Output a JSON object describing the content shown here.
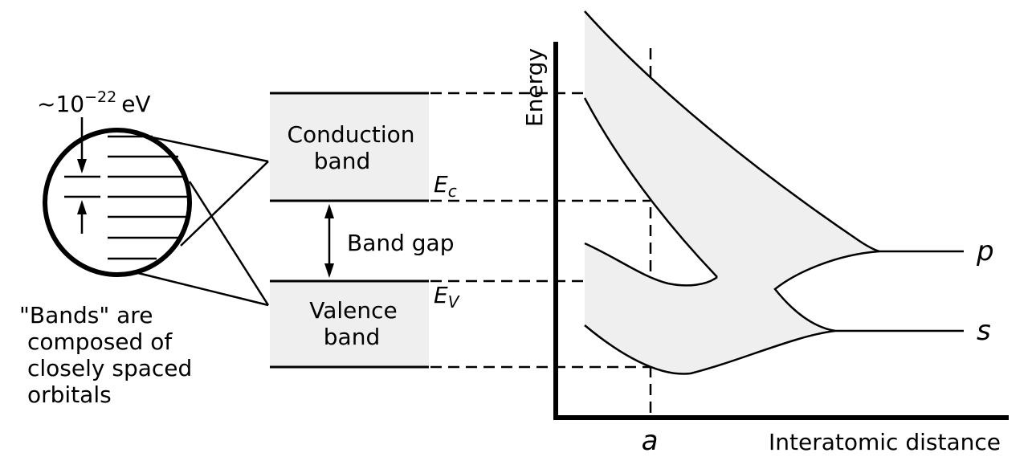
{
  "spacing_label": "~10",
  "spacing_exponent": "−22",
  "spacing_unit": "eV",
  "caption_lines": [
    "\"Bands\" are",
    "composed of",
    "closely spaced",
    "orbitals"
  ],
  "conduction_band": [
    "Conduction",
    "band"
  ],
  "valence_band": [
    "Valence",
    "band"
  ],
  "band_gap": "Band gap",
  "ec_main": "E",
  "ec_sub": "c",
  "ev_main": "E",
  "ev_sub": "V",
  "y_axis_label": "Energy",
  "x_axis_label": "Interatomic distance",
  "lattice_label": "a",
  "level_p": "p",
  "level_s": "s",
  "colors": {
    "band_fill": "#efefef",
    "line": "#000000"
  }
}
